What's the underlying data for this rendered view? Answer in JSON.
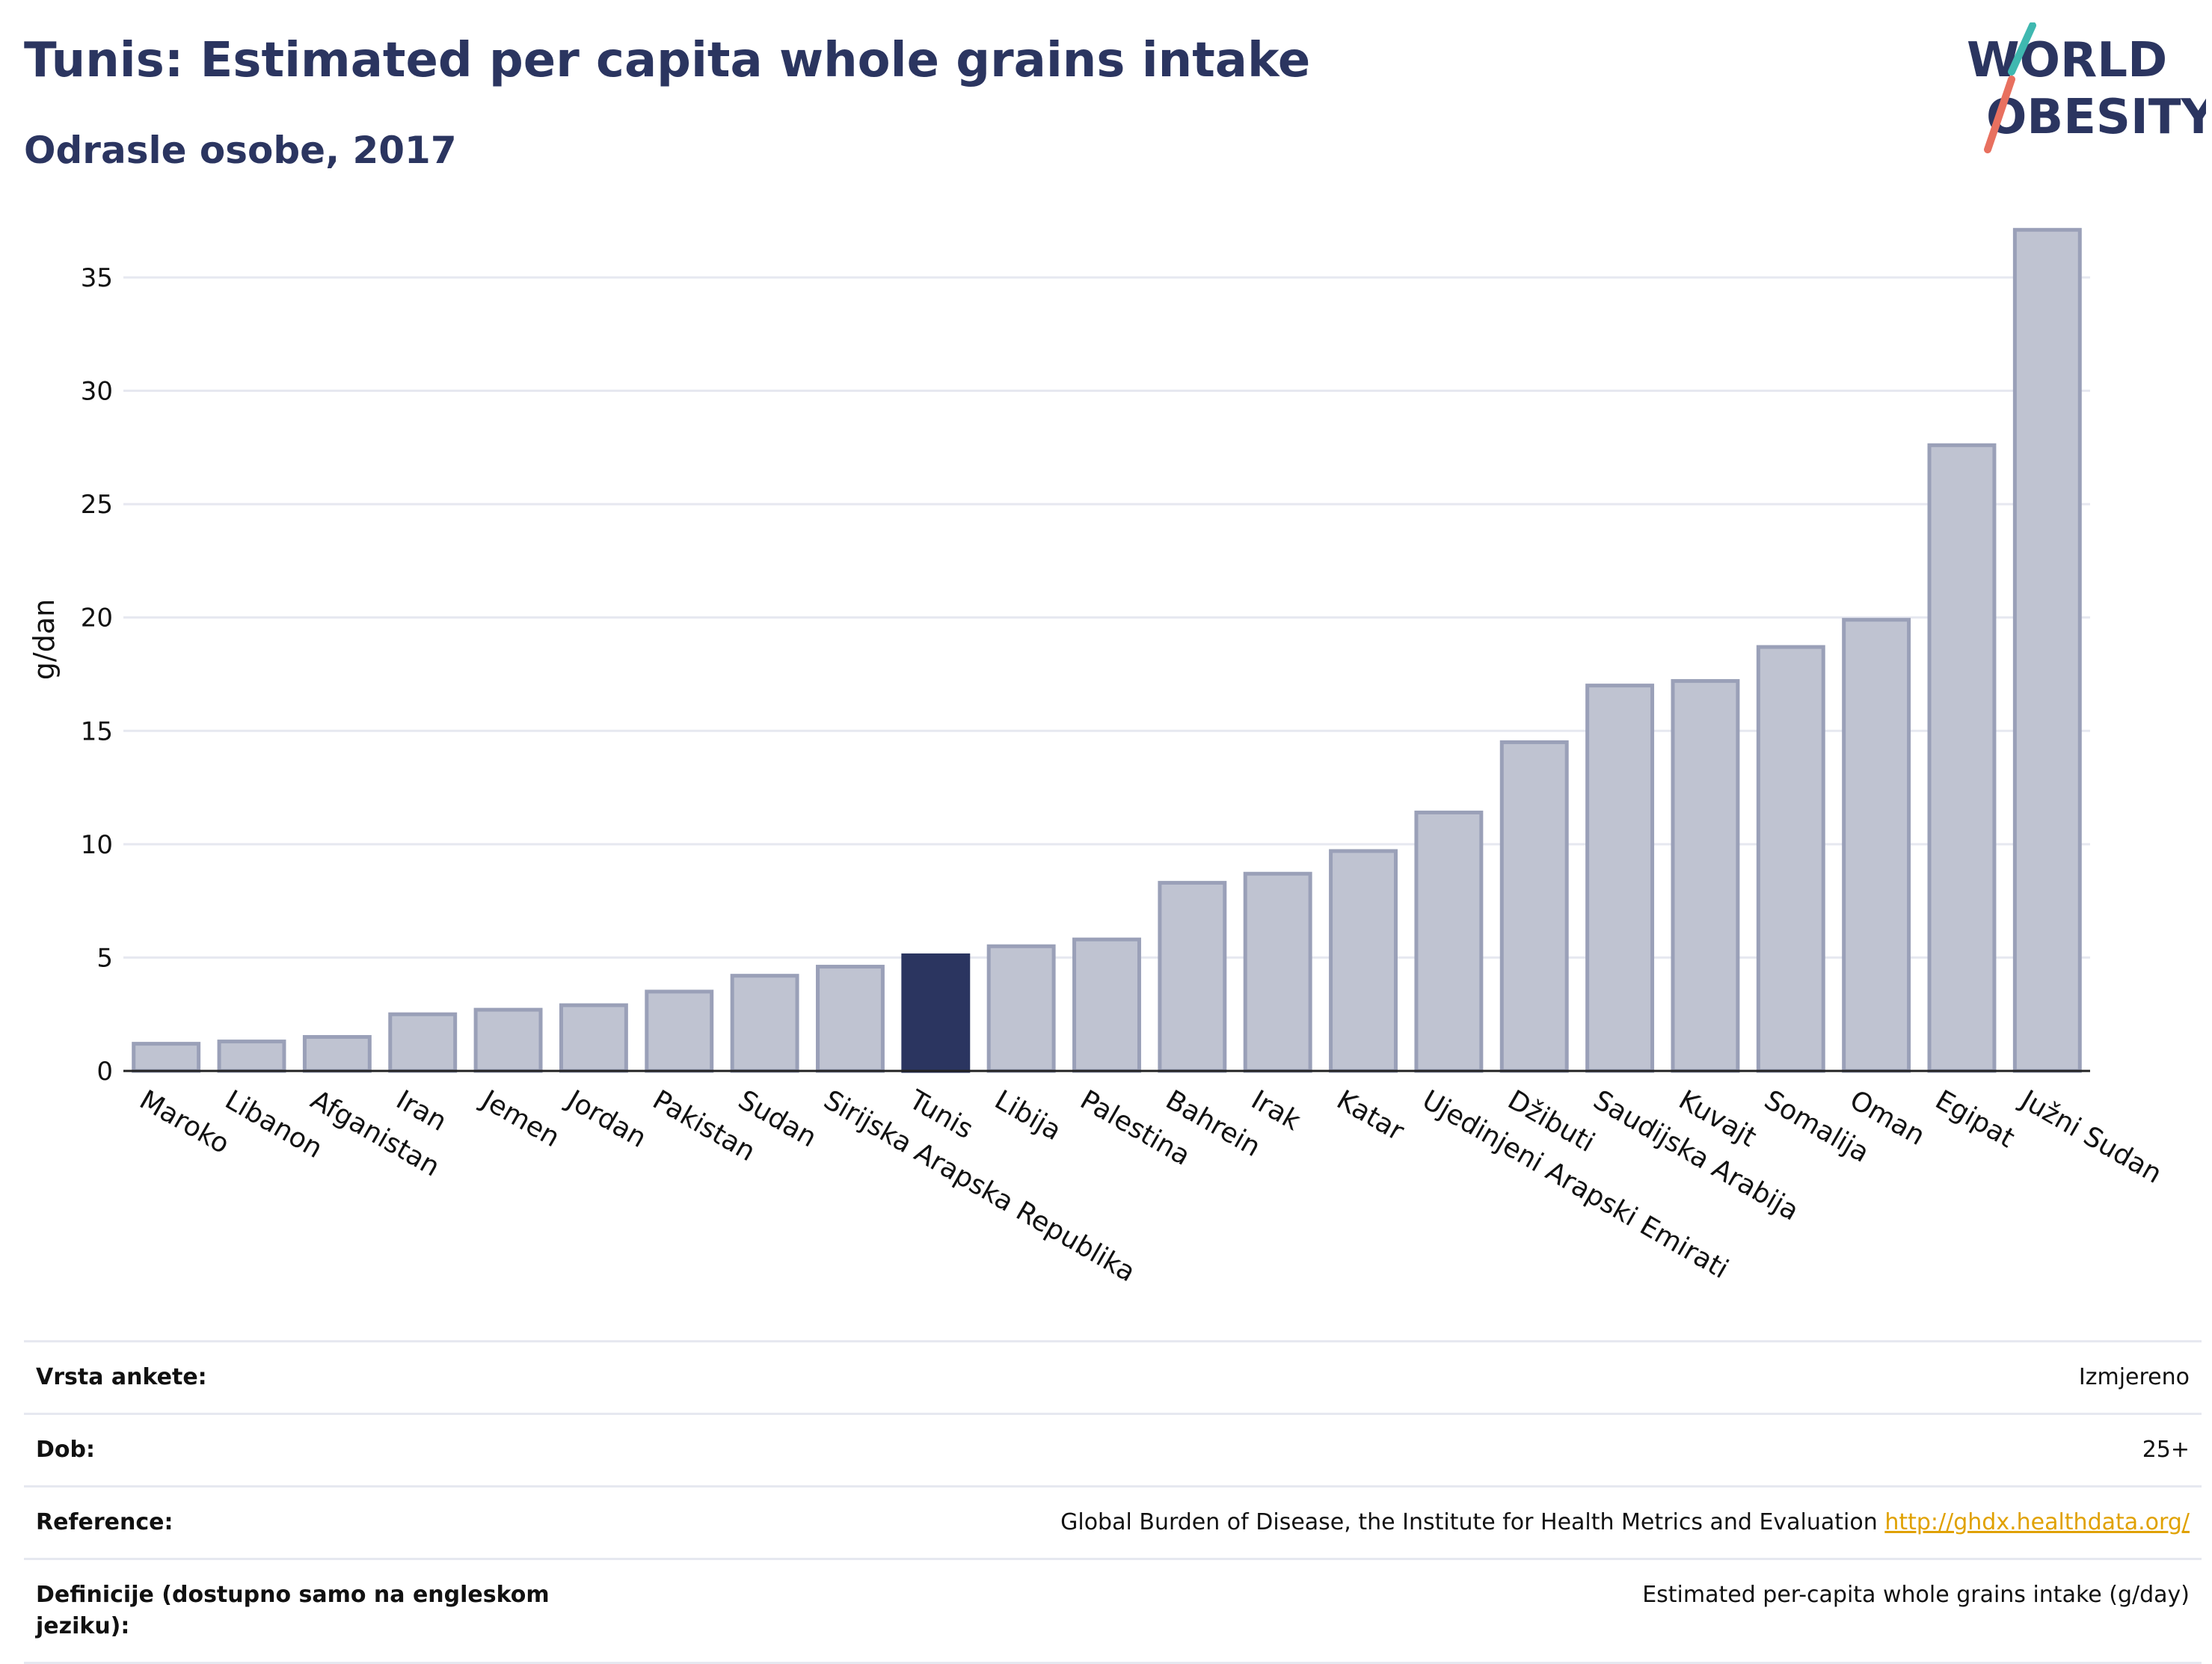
{
  "header": {
    "title": "Tunis: Estimated per capita whole grains intake",
    "subtitle": "Odrasle osobe, 2017"
  },
  "logo": {
    "line1": "WORLD",
    "line2": "OBESITY"
  },
  "colors": {
    "bar": "#bfc3d1",
    "bar_stroke": "#9aa0b8",
    "highlight": "#2b3560",
    "grid": "#e6e8f0",
    "title": "#2b3560",
    "link": "#e0a100"
  },
  "chart_data": {
    "type": "bar",
    "title": "Tunis: Estimated per capita whole grains intake",
    "subtitle": "Odrasle osobe, 2017",
    "ylabel": "g/dan",
    "ylim": [
      0,
      38
    ],
    "yticks": [
      0,
      5,
      10,
      15,
      20,
      25,
      30,
      35
    ],
    "grid": true,
    "highlight": "Tunis",
    "categories": [
      "Maroko",
      "Libanon",
      "Afganistan",
      "Iran",
      "Jemen",
      "Jordan",
      "Pakistan",
      "Sudan",
      "Sirijska Arapska Republika",
      "Tunis",
      "Libija",
      "Palestina",
      "Bahrein",
      "Irak",
      "Katar",
      "Ujedinjeni Arapski Emirati",
      "Džibuti",
      "Saudijska Arabija",
      "Kuvajt",
      "Somalija",
      "Oman",
      "Egipat",
      "Južni Sudan"
    ],
    "values": [
      1.2,
      1.3,
      1.5,
      2.5,
      2.7,
      2.9,
      3.5,
      4.2,
      4.6,
      5.1,
      5.5,
      5.8,
      8.3,
      8.7,
      9.7,
      11.4,
      14.5,
      17.0,
      17.2,
      18.7,
      19.9,
      27.6,
      37.1
    ]
  },
  "info": [
    {
      "key": "Vrsta ankete:",
      "value": "Izmjereno"
    },
    {
      "key": "Dob:",
      "value": "25+"
    },
    {
      "key": "Reference:",
      "value": "Global Burden of Disease, the Institute for Health Metrics and Evaluation",
      "link": "http://ghdx.healthdata.org/"
    },
    {
      "key": "Definicije (dostupno samo na engleskom jeziku):",
      "value": "Estimated per-capita whole grains intake (g/day)"
    }
  ]
}
